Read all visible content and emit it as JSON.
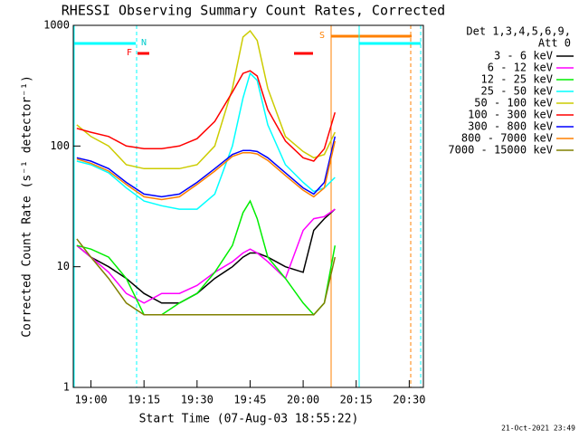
{
  "chart_data": {
    "type": "line",
    "title": "RHESSI Observing Summary Count Rates, Corrected",
    "x_label": "Start Time (07-Aug-03 18:55:22)",
    "y_label": "Corrected Count Rate (s⁻¹ detector⁻¹)",
    "legend_title": [
      "Det 1,3,4,5,6,9,",
      "Att 0"
    ],
    "annotations": [
      "N",
      "F",
      "S"
    ],
    "footer": "21-Oct-2021 23:49",
    "log_y": true,
    "xlim": [
      "18:55",
      "20:34"
    ],
    "xticks": [
      "19:00",
      "19:15",
      "19:30",
      "19:45",
      "20:00",
      "20:15",
      "20:30"
    ],
    "ylim": [
      1,
      1000
    ],
    "yticks": [
      1,
      10,
      100,
      1000
    ],
    "x": [
      "18:56",
      "19:00",
      "19:05",
      "19:10",
      "19:15",
      "19:20",
      "19:25",
      "19:30",
      "19:35",
      "19:40",
      "19:43",
      "19:45",
      "19:47",
      "19:50",
      "19:55",
      "20:00",
      "20:03",
      "20:06",
      "20:09"
    ],
    "series": [
      {
        "name": "3 - 6 keV",
        "color": "#000000",
        "values": [
          15,
          12,
          10,
          8,
          6,
          5,
          5,
          6,
          8,
          10,
          12,
          13,
          13,
          12,
          10,
          9,
          20,
          25,
          30
        ]
      },
      {
        "name": "6 - 12 keV",
        "color": "#ff00ff",
        "values": [
          15,
          12,
          9,
          6,
          5,
          6,
          6,
          7,
          9,
          11,
          13,
          14,
          13,
          11,
          8,
          20,
          25,
          26,
          30
        ]
      },
      {
        "name": "12 - 25 keV",
        "color": "#00ee00",
        "values": [
          15,
          14,
          12,
          8,
          4,
          4,
          5,
          6,
          9,
          15,
          28,
          35,
          25,
          12,
          8,
          5,
          4,
          5,
          15
        ]
      },
      {
        "name": "25 - 50 keV",
        "color": "#00ffff",
        "values": [
          75,
          70,
          60,
          45,
          35,
          32,
          30,
          30,
          40,
          100,
          250,
          400,
          350,
          150,
          70,
          50,
          42,
          45,
          55
        ]
      },
      {
        "name": "50 - 100 keV",
        "color": "#cccc00",
        "values": [
          150,
          120,
          100,
          70,
          65,
          65,
          65,
          70,
          100,
          300,
          800,
          900,
          750,
          300,
          120,
          90,
          80,
          85,
          130
        ]
      },
      {
        "name": "100 - 300 keV",
        "color": "#ff0000",
        "values": [
          140,
          130,
          120,
          100,
          95,
          95,
          100,
          115,
          160,
          280,
          400,
          420,
          380,
          200,
          110,
          80,
          75,
          95,
          190
        ]
      },
      {
        "name": "300 - 800 keV",
        "color": "#0000ff",
        "values": [
          80,
          75,
          65,
          50,
          40,
          38,
          40,
          50,
          65,
          85,
          92,
          92,
          90,
          80,
          60,
          45,
          40,
          50,
          120
        ]
      },
      {
        "name": "800 - 7000 keV",
        "color": "#ff8000",
        "values": [
          78,
          72,
          62,
          48,
          38,
          36,
          38,
          48,
          62,
          82,
          88,
          88,
          86,
          76,
          57,
          43,
          38,
          45,
          110
        ]
      },
      {
        "name": "7000 - 15000 keV",
        "color": "#808000",
        "values": [
          17,
          12,
          8,
          5,
          4,
          4,
          4,
          4,
          4,
          4,
          4,
          4,
          4,
          4,
          4,
          4,
          4,
          5,
          12
        ]
      }
    ]
  }
}
